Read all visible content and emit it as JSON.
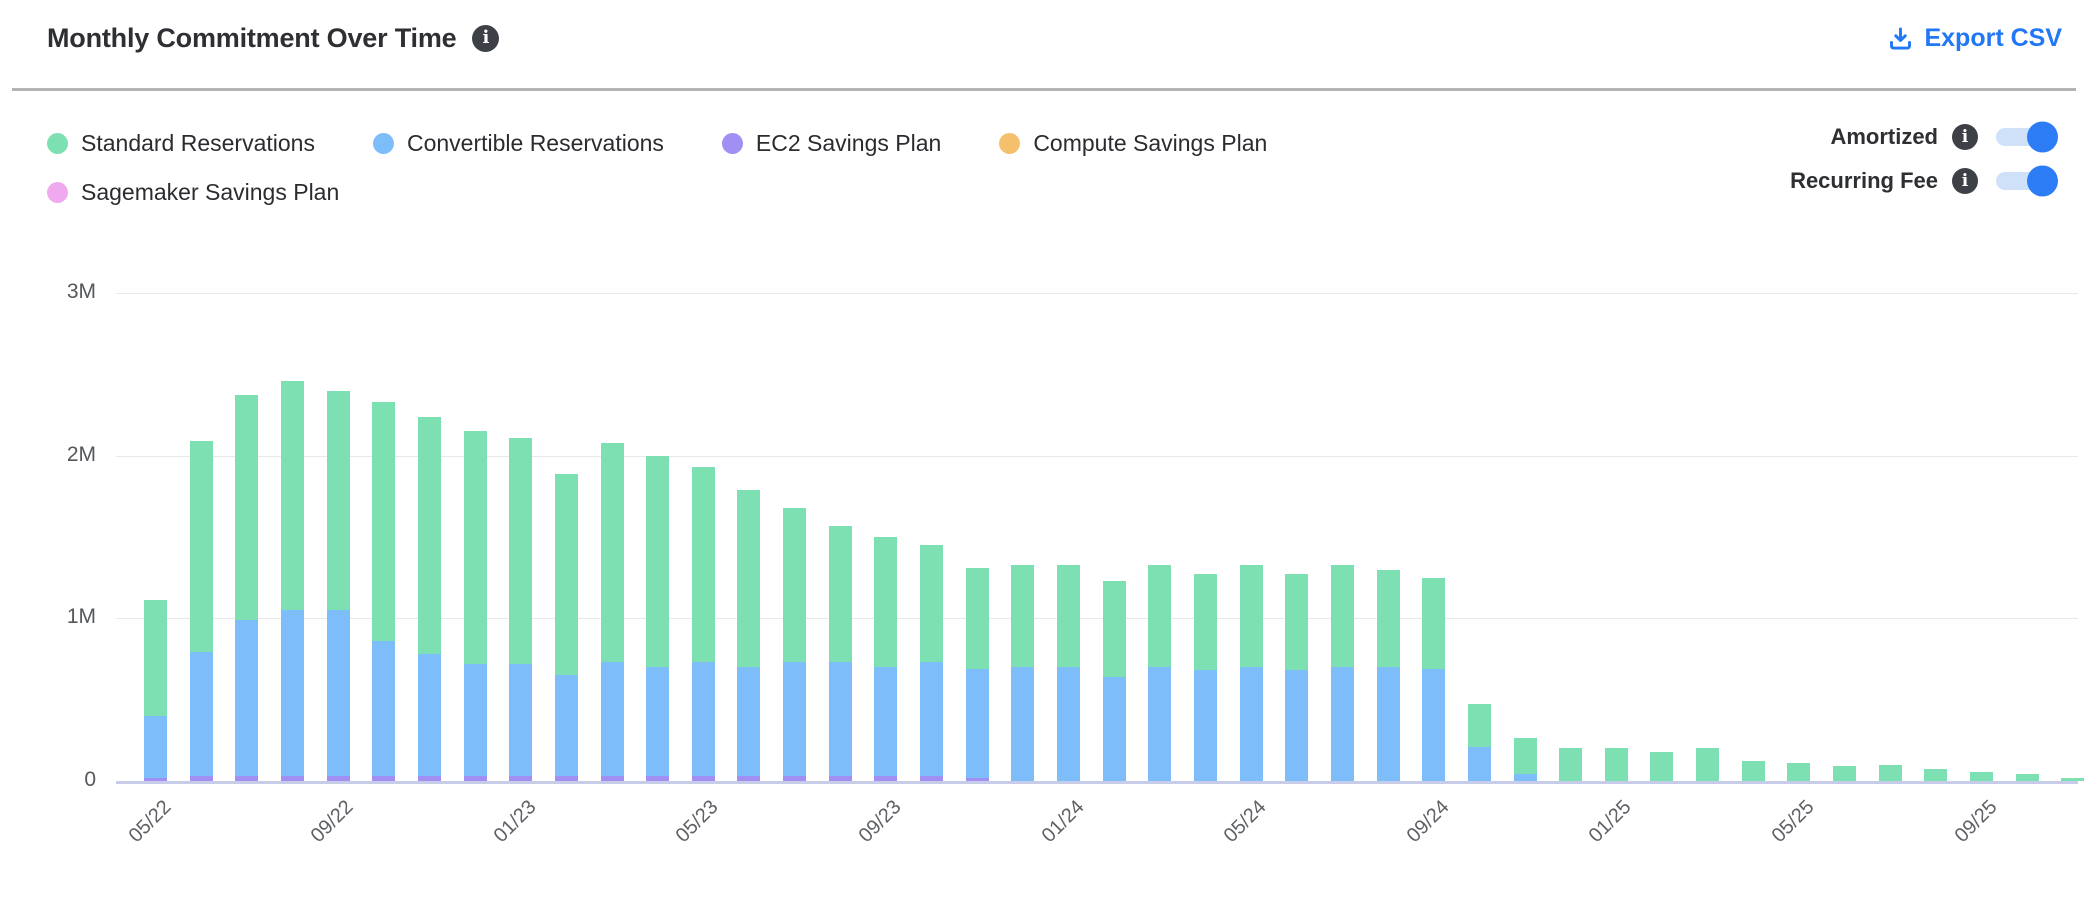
{
  "header": {
    "title": "Monthly Commitment Over Time",
    "export_csv_label": "Export CSV"
  },
  "controls": {
    "toggles": [
      {
        "label": "Amortized",
        "state": "on"
      },
      {
        "label": "Recurring Fee",
        "state": "on"
      }
    ]
  },
  "legend": {
    "items": [
      {
        "label": "Standard Reservations",
        "color": "#7de0b2"
      },
      {
        "label": "Convertible Reservations",
        "color": "#7cbdfa"
      },
      {
        "label": "EC2 Savings Plan",
        "color": "#a18ff3"
      },
      {
        "label": "Compute Savings Plan",
        "color": "#f5c06d"
      },
      {
        "label": "Sagemaker Savings Plan",
        "color": "#f0a9ee"
      }
    ]
  },
  "colors": {
    "toggle_on": "#2b7cf5",
    "toggle_track": "#cfe1f8",
    "export_link": "#2277f5",
    "axis_line": "#c7cde9",
    "gridline": "#e9e9ec"
  },
  "chart_data": {
    "type": "bar",
    "stacked": true,
    "title": "Monthly Commitment Over Time",
    "xlabel": "",
    "ylabel": "",
    "ylim": [
      0,
      3
    ],
    "grid": true,
    "legend_position": "top-left",
    "unit": "M",
    "yticks": [
      {
        "label": "0",
        "value": 0
      },
      {
        "label": "1M",
        "value": 1
      },
      {
        "label": "2M",
        "value": 2
      },
      {
        "label": "3M",
        "value": 3
      }
    ],
    "categories": [
      "05/22",
      "06/22",
      "07/22",
      "08/22",
      "09/22",
      "10/22",
      "11/22",
      "12/22",
      "01/23",
      "02/23",
      "03/23",
      "04/23",
      "05/23",
      "06/23",
      "07/23",
      "08/23",
      "09/23",
      "10/23",
      "11/23",
      "12/23",
      "01/24",
      "02/24",
      "03/24",
      "04/24",
      "05/24",
      "06/24",
      "07/24",
      "08/24",
      "09/24",
      "10/24",
      "11/24",
      "12/24",
      "01/25",
      "02/25",
      "03/25",
      "04/25",
      "05/25",
      "06/25",
      "07/25",
      "08/25",
      "09/25",
      "10/25",
      "11/25"
    ],
    "x_tick_labels": [
      "05/22",
      "09/22",
      "01/23",
      "05/23",
      "09/23",
      "01/24",
      "05/24",
      "09/24",
      "01/25",
      "05/25",
      "09/25"
    ],
    "x_tick_every": 4,
    "stack_order_bottom_to_top": [
      "EC2 Savings Plan",
      "Convertible Reservations",
      "Standard Reservations",
      "Compute Savings Plan",
      "Sagemaker Savings Plan"
    ],
    "series": [
      {
        "name": "EC2 Savings Plan",
        "color": "#a18ff3",
        "values": [
          0.02,
          0.03,
          0.03,
          0.03,
          0.03,
          0.03,
          0.03,
          0.03,
          0.03,
          0.03,
          0.03,
          0.03,
          0.03,
          0.03,
          0.03,
          0.03,
          0.03,
          0.03,
          0.02,
          0,
          0,
          0,
          0,
          0,
          0,
          0,
          0,
          0,
          0,
          0,
          0,
          0,
          0,
          0,
          0,
          0,
          0,
          0,
          0,
          0,
          0,
          0,
          0
        ]
      },
      {
        "name": "Convertible Reservations",
        "color": "#7cbdfa",
        "values": [
          0.38,
          0.76,
          0.96,
          1.02,
          1.02,
          0.83,
          0.75,
          0.69,
          0.69,
          0.62,
          0.7,
          0.67,
          0.7,
          0.67,
          0.7,
          0.7,
          0.67,
          0.7,
          0.67,
          0.7,
          0.7,
          0.64,
          0.7,
          0.68,
          0.7,
          0.68,
          0.7,
          0.7,
          0.69,
          0.21,
          0.04,
          0,
          0,
          0,
          0,
          0,
          0,
          0,
          0,
          0,
          0,
          0,
          0
        ]
      },
      {
        "name": "Standard Reservations",
        "color": "#7de0b2",
        "values": [
          0.71,
          1.3,
          1.38,
          1.41,
          1.35,
          1.47,
          1.46,
          1.43,
          1.39,
          1.24,
          1.35,
          1.3,
          1.2,
          1.09,
          0.95,
          0.84,
          0.8,
          0.72,
          0.62,
          0.63,
          0.63,
          0.59,
          0.63,
          0.59,
          0.63,
          0.59,
          0.63,
          0.6,
          0.56,
          0.265,
          0.225,
          0.2,
          0.2,
          0.18,
          0.2,
          0.125,
          0.11,
          0.095,
          0.1,
          0.075,
          0.055,
          0.04,
          0.02
        ]
      },
      {
        "name": "Compute Savings Plan",
        "color": "#f5c06d",
        "values": [
          0,
          0,
          0,
          0,
          0,
          0,
          0,
          0,
          0,
          0,
          0,
          0,
          0,
          0,
          0,
          0,
          0,
          0,
          0,
          0,
          0,
          0,
          0,
          0,
          0,
          0,
          0,
          0,
          0,
          0,
          0,
          0,
          0,
          0,
          0,
          0,
          0,
          0,
          0,
          0,
          0,
          0,
          0
        ]
      },
      {
        "name": "Sagemaker Savings Plan",
        "color": "#f0a9ee",
        "values": [
          0,
          0,
          0,
          0,
          0,
          0,
          0,
          0,
          0,
          0,
          0,
          0,
          0,
          0,
          0,
          0,
          0,
          0,
          0,
          0,
          0,
          0,
          0,
          0,
          0,
          0,
          0,
          0,
          0,
          0,
          0,
          0,
          0,
          0,
          0,
          0,
          0,
          0,
          0,
          0,
          0,
          0,
          0
        ]
      }
    ]
  }
}
